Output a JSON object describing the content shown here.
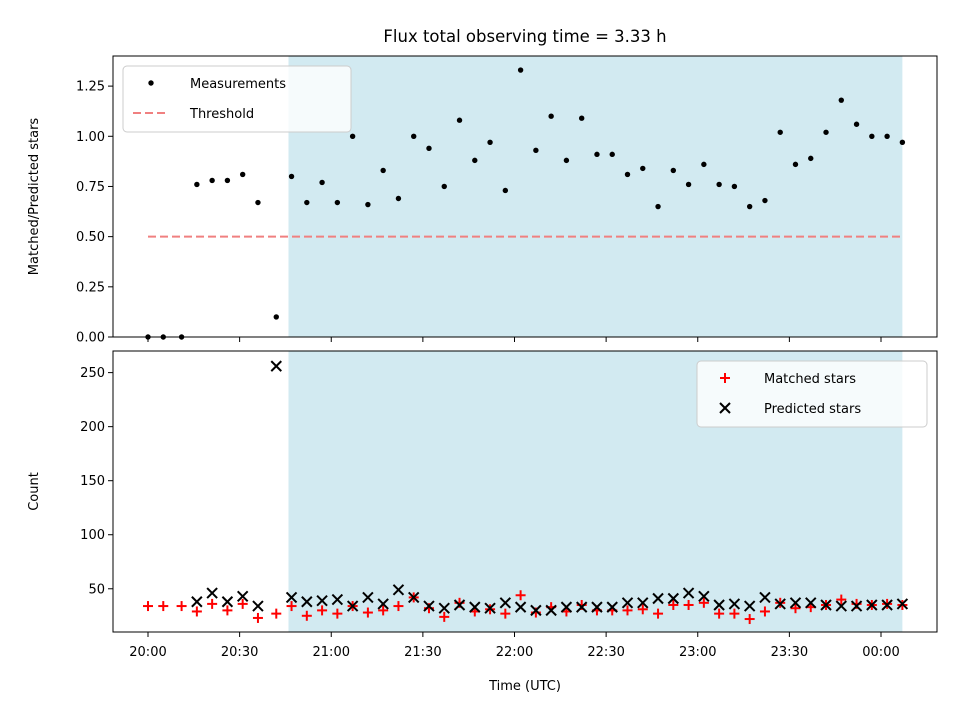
{
  "chart_data": {
    "type": "scatter",
    "title": "Flux total observing time = 3.33 h",
    "xlabel": "Time (UTC)",
    "x_ticks": [
      "20:00",
      "20:30",
      "21:00",
      "21:30",
      "22:00",
      "22:30",
      "23:00",
      "23:30",
      "00:00"
    ],
    "observing_window": {
      "start": "20:46",
      "end": "00:07",
      "color": "#add8e6"
    },
    "colors": {
      "measurements": "#000000",
      "threshold": "#f08080",
      "matched": "#ff0000",
      "predicted": "#000000",
      "window": "#add8e6"
    },
    "panels": [
      {
        "ylabel": "Matched/Predicted stars",
        "ylim": [
          0,
          1.4
        ],
        "y_ticks": [
          "0.00",
          "0.25",
          "0.50",
          "0.75",
          "1.00",
          "1.25"
        ],
        "legend_position": "upper-left",
        "threshold": {
          "name": "Threshold",
          "value": 0.5,
          "start": "20:00",
          "end": "00:07"
        },
        "series": [
          {
            "name": "Measurements",
            "marker": "dot",
            "points": [
              [
                "20:00",
                0.0
              ],
              [
                "20:05",
                0.0
              ],
              [
                "20:11",
                0.0
              ],
              [
                "20:16",
                0.76
              ],
              [
                "20:21",
                0.78
              ],
              [
                "20:26",
                0.78
              ],
              [
                "20:31",
                0.81
              ],
              [
                "20:36",
                0.67
              ],
              [
                "20:42",
                0.1
              ],
              [
                "20:47",
                0.8
              ],
              [
                "20:52",
                0.67
              ],
              [
                "20:57",
                0.77
              ],
              [
                "21:02",
                0.67
              ],
              [
                "21:07",
                1.0
              ],
              [
                "21:12",
                0.66
              ],
              [
                "21:17",
                0.83
              ],
              [
                "21:22",
                0.69
              ],
              [
                "21:27",
                1.0
              ],
              [
                "21:32",
                0.94
              ],
              [
                "21:37",
                0.75
              ],
              [
                "21:42",
                1.08
              ],
              [
                "21:47",
                0.88
              ],
              [
                "21:52",
                0.97
              ],
              [
                "21:57",
                0.73
              ],
              [
                "22:02",
                1.33
              ],
              [
                "22:07",
                0.93
              ],
              [
                "22:12",
                1.1
              ],
              [
                "22:17",
                0.88
              ],
              [
                "22:22",
                1.09
              ],
              [
                "22:27",
                0.91
              ],
              [
                "22:32",
                0.91
              ],
              [
                "22:37",
                0.81
              ],
              [
                "22:42",
                0.84
              ],
              [
                "22:47",
                0.65
              ],
              [
                "22:52",
                0.83
              ],
              [
                "22:57",
                0.76
              ],
              [
                "23:02",
                0.86
              ],
              [
                "23:07",
                0.76
              ],
              [
                "23:12",
                0.75
              ],
              [
                "23:17",
                0.65
              ],
              [
                "23:22",
                0.68
              ],
              [
                "23:27",
                1.02
              ],
              [
                "23:32",
                0.86
              ],
              [
                "23:37",
                0.89
              ],
              [
                "23:42",
                1.02
              ],
              [
                "23:47",
                1.18
              ],
              [
                "23:52",
                1.06
              ],
              [
                "23:57",
                1.0
              ],
              [
                "00:02",
                1.0
              ],
              [
                "00:07",
                0.97
              ]
            ]
          }
        ]
      },
      {
        "ylabel": "Count",
        "ylim": [
          10,
          270
        ],
        "y_ticks": [
          "50",
          "100",
          "150",
          "200",
          "250"
        ],
        "legend_position": "upper-right",
        "series": [
          {
            "name": "Matched stars",
            "marker": "plus",
            "points": [
              [
                "20:00",
                34
              ],
              [
                "20:05",
                34
              ],
              [
                "20:11",
                34
              ],
              [
                "20:16",
                29
              ],
              [
                "20:21",
                36
              ],
              [
                "20:26",
                30
              ],
              [
                "20:31",
                36
              ],
              [
                "20:36",
                23
              ],
              [
                "20:42",
                27
              ],
              [
                "20:47",
                34
              ],
              [
                "20:52",
                25
              ],
              [
                "20:57",
                30
              ],
              [
                "21:02",
                27
              ],
              [
                "21:07",
                34
              ],
              [
                "21:12",
                28
              ],
              [
                "21:17",
                30
              ],
              [
                "21:22",
                34
              ],
              [
                "21:27",
                42
              ],
              [
                "21:32",
                32
              ],
              [
                "21:37",
                24
              ],
              [
                "21:42",
                37
              ],
              [
                "21:47",
                29
              ],
              [
                "21:52",
                31
              ],
              [
                "21:57",
                27
              ],
              [
                "22:02",
                44
              ],
              [
                "22:07",
                28
              ],
              [
                "22:12",
                33
              ],
              [
                "22:17",
                29
              ],
              [
                "22:22",
                35
              ],
              [
                "22:27",
                30
              ],
              [
                "22:32",
                30
              ],
              [
                "22:37",
                30
              ],
              [
                "22:42",
                31
              ],
              [
                "22:47",
                27
              ],
              [
                "22:52",
                35
              ],
              [
                "22:57",
                35
              ],
              [
                "23:02",
                37
              ],
              [
                "23:07",
                27
              ],
              [
                "23:12",
                27
              ],
              [
                "23:17",
                22
              ],
              [
                "23:22",
                29
              ],
              [
                "23:27",
                37
              ],
              [
                "23:32",
                32
              ],
              [
                "23:37",
                33
              ],
              [
                "23:42",
                35
              ],
              [
                "23:47",
                40
              ],
              [
                "23:52",
                36
              ],
              [
                "23:57",
                35
              ],
              [
                "00:02",
                36
              ],
              [
                "00:07",
                35
              ]
            ]
          },
          {
            "name": "Predicted stars",
            "marker": "x",
            "points": [
              [
                "20:16",
                38
              ],
              [
                "20:21",
                46
              ],
              [
                "20:26",
                38
              ],
              [
                "20:31",
                43
              ],
              [
                "20:36",
                34
              ],
              [
                "20:42",
                256
              ],
              [
                "20:47",
                42
              ],
              [
                "20:52",
                38
              ],
              [
                "20:57",
                39
              ],
              [
                "21:02",
                40
              ],
              [
                "21:07",
                34
              ],
              [
                "21:12",
                42
              ],
              [
                "21:17",
                36
              ],
              [
                "21:22",
                49
              ],
              [
                "21:27",
                42
              ],
              [
                "21:32",
                34
              ],
              [
                "21:37",
                32
              ],
              [
                "21:42",
                35
              ],
              [
                "21:47",
                33
              ],
              [
                "21:52",
                32
              ],
              [
                "21:57",
                37
              ],
              [
                "22:02",
                33
              ],
              [
                "22:07",
                30
              ],
              [
                "22:12",
                30
              ],
              [
                "22:17",
                33
              ],
              [
                "22:22",
                33
              ],
              [
                "22:27",
                33
              ],
              [
                "22:32",
                33
              ],
              [
                "22:37",
                37
              ],
              [
                "22:42",
                37
              ],
              [
                "22:47",
                41
              ],
              [
                "22:52",
                41
              ],
              [
                "22:57",
                46
              ],
              [
                "23:02",
                43
              ],
              [
                "23:07",
                35
              ],
              [
                "23:12",
                36
              ],
              [
                "23:17",
                34
              ],
              [
                "23:22",
                42
              ],
              [
                "23:27",
                36
              ],
              [
                "23:32",
                37
              ],
              [
                "23:37",
                37
              ],
              [
                "23:42",
                35
              ],
              [
                "23:47",
                34
              ],
              [
                "23:52",
                34
              ],
              [
                "23:57",
                35
              ],
              [
                "00:02",
                35
              ],
              [
                "00:07",
                36
              ]
            ]
          }
        ]
      }
    ]
  }
}
